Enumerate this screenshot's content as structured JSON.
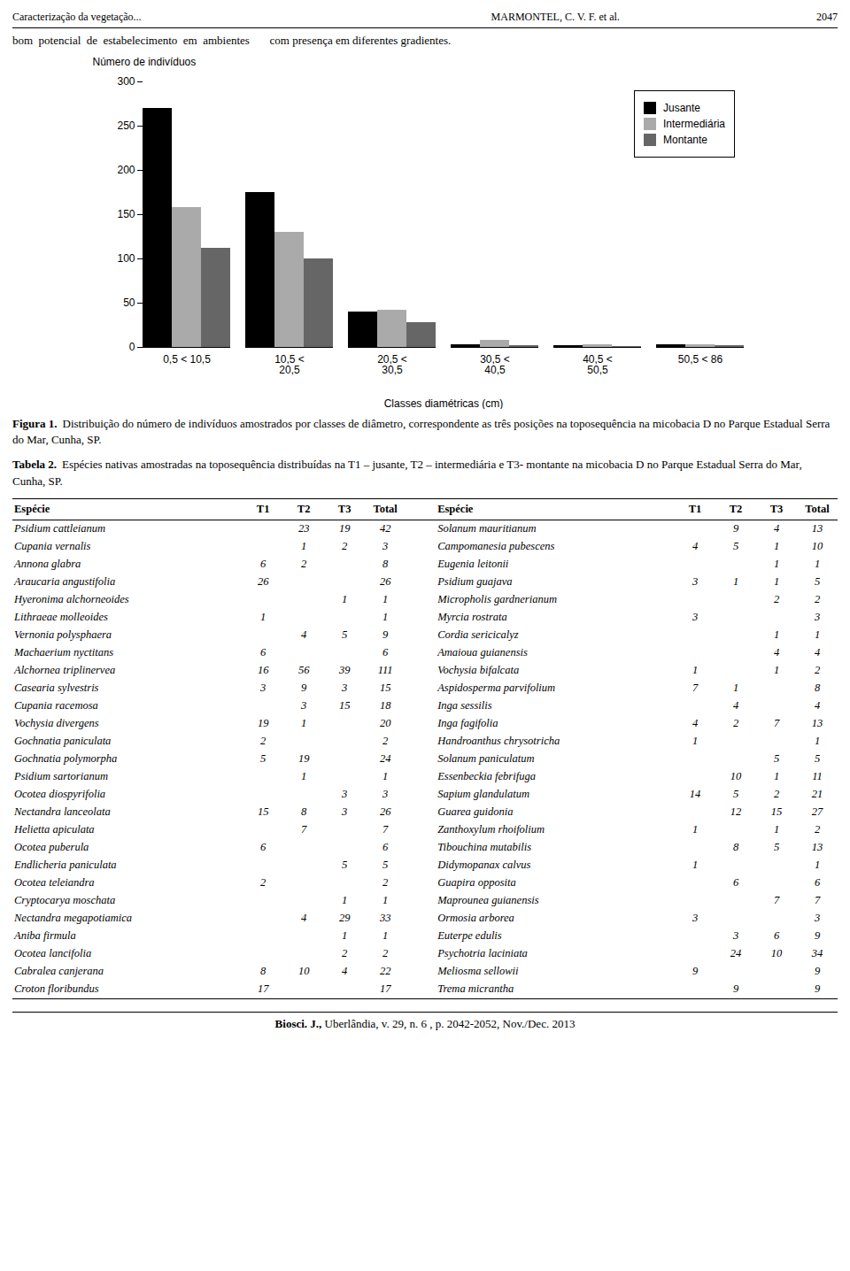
{
  "chart_data": {
    "type": "bar",
    "categories": [
      "0,5 < 10,5",
      "10,5 <\n20,5",
      "20,5 <\n30,5",
      "30,5 <\n40,5",
      "40,5 <\n50,5",
      "50,5 < 86"
    ],
    "series": [
      {
        "name": "Jusante",
        "color": "#000000",
        "values": [
          270,
          175,
          40,
          3,
          2,
          3
        ]
      },
      {
        "name": "Intermediária",
        "color": "#aaaaaa",
        "values": [
          158,
          130,
          42,
          8,
          3,
          3
        ]
      },
      {
        "name": "Montante",
        "color": "#666666",
        "values": [
          112,
          100,
          28,
          2,
          1,
          2
        ]
      }
    ],
    "xlabel": "Classes diamétricas (cm)",
    "ylabel": "Número de indivíduos",
    "ylim": [
      0,
      300
    ],
    "yticks": [
      0,
      50,
      100,
      150,
      200,
      250,
      300
    ],
    "legend": "upper right",
    "grid": false
  },
  "header": {
    "left": "Caracterização da vegetação...",
    "right": "MARMONTEL, C. V. F. et al.",
    "page_number": "2047"
  },
  "intro_text": "bom  potencial  de  estabelecimento  em  ambientes       com presença em diferentes gradientes.",
  "figure_caption": {
    "label": "Figura 1.",
    "text": "Distribuição do número de indivíduos amostrados por classes de diâmetro, correspondente as três posições na toposequência na micobacia D no Parque Estadual Serra do Mar, Cunha, SP."
  },
  "table_caption": {
    "label": "Tabela 2.",
    "text": "Espécies nativas amostradas na toposequência distribuídas na T1 – jusante, T2 – intermediária e T3- montante na micobacia D no Parque Estadual Serra do Mar, Cunha, SP."
  },
  "table": {
    "columns": [
      "Espécie",
      "T1",
      "T2",
      "T3",
      "Total"
    ],
    "left": [
      [
        "Psidium cattleianum",
        null,
        23,
        19,
        42
      ],
      [
        "Cupania vernalis",
        null,
        1,
        2,
        3
      ],
      [
        "Annona glabra",
        6,
        2,
        null,
        8
      ],
      [
        "Araucaria angustifolia",
        26,
        null,
        null,
        26
      ],
      [
        "Hyeronima alchorneoides",
        null,
        null,
        1,
        1
      ],
      [
        "Lithraeae molleoides",
        1,
        null,
        null,
        1
      ],
      [
        "Vernonia polysphaera",
        null,
        4,
        5,
        9
      ],
      [
        "Machaerium nyctitans",
        6,
        null,
        null,
        6
      ],
      [
        "Alchornea triplinervea",
        16,
        56,
        39,
        111
      ],
      [
        "Casearia sylvestris",
        3,
        9,
        3,
        15
      ],
      [
        "Cupania racemosa",
        null,
        3,
        15,
        18
      ],
      [
        "Vochysia divergens",
        19,
        1,
        null,
        20
      ],
      [
        "Gochnatia paniculata",
        2,
        null,
        null,
        2
      ],
      [
        "Gochnatia polymorpha",
        5,
        19,
        null,
        24
      ],
      [
        "Psidium sartorianum",
        null,
        1,
        null,
        1
      ],
      [
        "Ocotea diospyrifolia",
        null,
        null,
        3,
        3
      ],
      [
        "Nectandra lanceolata",
        15,
        8,
        3,
        26
      ],
      [
        "Helietta apiculata",
        null,
        7,
        null,
        7
      ],
      [
        "Ocotea puberula",
        6,
        null,
        null,
        6
      ],
      [
        "Endlicheria paniculata",
        null,
        null,
        5,
        5
      ],
      [
        "Ocotea teleiandra",
        2,
        null,
        null,
        2
      ],
      [
        "Cryptocarya moschata",
        null,
        null,
        1,
        1
      ],
      [
        "Nectandra megapotiamica",
        null,
        4,
        29,
        33
      ],
      [
        "Aniba firmula",
        null,
        null,
        1,
        1
      ],
      [
        "Ocotea lancifolia",
        null,
        null,
        2,
        2
      ],
      [
        "Cabralea canjerana",
        8,
        10,
        4,
        22
      ],
      [
        "Croton floribundus",
        17,
        null,
        null,
        17
      ]
    ],
    "right": [
      [
        "Solanum mauritianum",
        null,
        9,
        4,
        13
      ],
      [
        "Campomanesia pubescens",
        4,
        5,
        1,
        10
      ],
      [
        "Eugenia leitonii",
        null,
        null,
        1,
        1
      ],
      [
        "Psidium guajava",
        3,
        1,
        1,
        5
      ],
      [
        "Micropholis gardnerianum",
        null,
        null,
        2,
        2
      ],
      [
        "Myrcia rostrata",
        3,
        null,
        null,
        3
      ],
      [
        "Cordia sericicalyz",
        null,
        null,
        1,
        1
      ],
      [
        "Amaioua guianensis",
        null,
        null,
        4,
        4
      ],
      [
        "Vochysia bifalcata",
        1,
        null,
        1,
        2
      ],
      [
        "Aspidosperma parvifolium",
        7,
        1,
        null,
        8
      ],
      [
        "Inga sessilis",
        null,
        4,
        null,
        4
      ],
      [
        "Inga fagifolia",
        4,
        2,
        7,
        13
      ],
      [
        "Handroanthus chrysotricha",
        1,
        null,
        null,
        1
      ],
      [
        "Solanum paniculatum",
        null,
        null,
        5,
        5
      ],
      [
        "Essenbeckia febrifuga",
        null,
        10,
        1,
        11
      ],
      [
        "Sapium glandulatum",
        14,
        5,
        2,
        21
      ],
      [
        "Guarea guidonia",
        null,
        12,
        15,
        27
      ],
      [
        "Zanthoxylum rhoifolium",
        1,
        null,
        1,
        2
      ],
      [
        "Tibouchina mutabilis",
        null,
        8,
        5,
        13
      ],
      [
        "Didymopanax calvus",
        1,
        null,
        null,
        1
      ],
      [
        "Guapira opposita",
        null,
        6,
        null,
        6
      ],
      [
        "Maprounea guianensis",
        null,
        null,
        7,
        7
      ],
      [
        "Ormosia arborea",
        3,
        null,
        null,
        3
      ],
      [
        "Euterpe edulis",
        null,
        3,
        6,
        9
      ],
      [
        "Psychotria laciniata",
        null,
        24,
        10,
        34
      ],
      [
        "Meliosma sellowii",
        9,
        null,
        null,
        9
      ],
      [
        "Trema micrantha",
        null,
        9,
        null,
        9
      ]
    ]
  },
  "footer": {
    "bold": "Biosci. J.,",
    "rest": " Uberlândia, v. 29, n. 6 , p. 2042-2052, Nov./Dec. 2013"
  }
}
